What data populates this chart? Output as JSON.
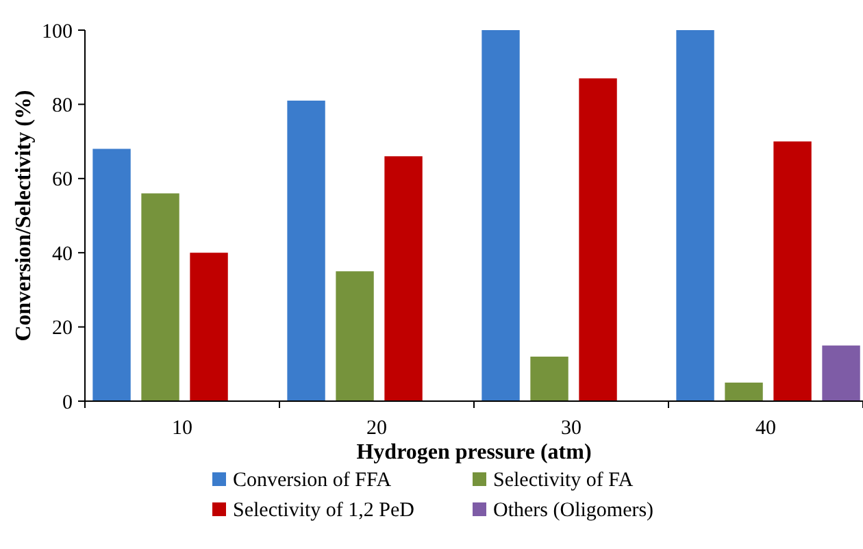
{
  "chart_data": {
    "type": "bar",
    "xlabel": "Hydrogen pressure (atm)",
    "ylabel": "Conversion/Selectivity (%)",
    "categories": [
      "10",
      "20",
      "30",
      "40"
    ],
    "ylim": [
      0,
      100
    ],
    "yticks": [
      0,
      20,
      40,
      60,
      80,
      100
    ],
    "grid": false,
    "legend": "bottom",
    "series": [
      {
        "name": "Conversion of FFA",
        "color": "#3b7ccc",
        "values": [
          68,
          81,
          100,
          100
        ]
      },
      {
        "name": "Selectivity of FA",
        "color": "#76933c",
        "values": [
          56,
          35,
          12,
          5
        ]
      },
      {
        "name": "Selectivity of 1,2 PeD",
        "color": "#c00000",
        "values": [
          40,
          66,
          87,
          70
        ]
      },
      {
        "name": "Others (Oligomers)",
        "color": "#7e5ca6",
        "values": [
          null,
          null,
          null,
          15
        ]
      }
    ]
  }
}
